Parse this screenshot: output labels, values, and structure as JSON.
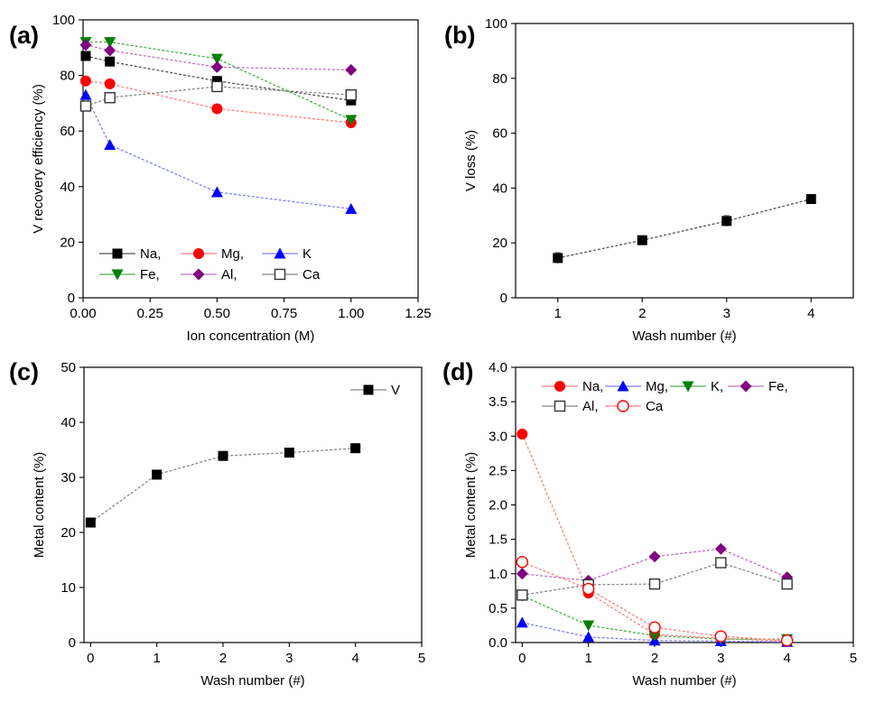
{
  "chart_data": [
    {
      "panel": "(a)",
      "type": "line",
      "xlabel": "Ion concentration (M)",
      "ylabel": "V recovery efficiency (%)",
      "xlim": [
        0,
        1.25
      ],
      "ylim": [
        0,
        100
      ],
      "xticks": [
        "0.00",
        "0.25",
        "0.50",
        "0.75",
        "1.00",
        "1.25"
      ],
      "yticks": [
        "0",
        "20",
        "40",
        "60",
        "80",
        "100"
      ],
      "legend_position": "bottom-left",
      "x": [
        0.01,
        0.1,
        0.5,
        1.0
      ],
      "series": [
        {
          "name": "Na,",
          "marker": "square",
          "color": "#000000",
          "line": "#555555",
          "values": [
            87,
            85,
            78,
            71
          ]
        },
        {
          "name": "Mg,",
          "marker": "circle",
          "color": "#ff0000",
          "line": "#ff8080",
          "values": [
            78,
            77,
            68,
            63
          ]
        },
        {
          "name": "K",
          "marker": "triangle-up",
          "color": "#0000ff",
          "line": "#7f7fff",
          "values": [
            73,
            55,
            38,
            32
          ]
        },
        {
          "name": "Fe,",
          "marker": "triangle-down",
          "color": "#008000",
          "line": "#4caf4c",
          "values": [
            92,
            92,
            86,
            64
          ]
        },
        {
          "name": "Al,",
          "marker": "diamond",
          "color": "#800080",
          "line": "#c070c0",
          "values": [
            91,
            89,
            83,
            82
          ]
        },
        {
          "name": "Ca",
          "marker": "open-square",
          "color": "#333333",
          "line": "#888888",
          "values": [
            69,
            72,
            76,
            73
          ]
        }
      ]
    },
    {
      "panel": "(b)",
      "type": "line",
      "xlabel": "Wash number (#)",
      "ylabel": "V loss (%)",
      "xlim": [
        0.5,
        4.5
      ],
      "ylim": [
        0,
        100
      ],
      "xticks": [
        "1",
        "2",
        "3",
        "4"
      ],
      "yticks": [
        "0",
        "20",
        "40",
        "60",
        "80",
        "100"
      ],
      "x": [
        1,
        2,
        3,
        4
      ],
      "series": [
        {
          "name": "",
          "marker": "square",
          "color": "#000000",
          "line": "#555555",
          "values": [
            14.5,
            21,
            28,
            36
          ],
          "errors": [
            2,
            1.5,
            2,
            1.5
          ]
        }
      ]
    },
    {
      "panel": "(c)",
      "type": "line",
      "xlabel": "Wash number (#)",
      "ylabel": "Metal content (%)",
      "xlim": [
        -0.1,
        5
      ],
      "ylim": [
        0,
        50
      ],
      "xticks": [
        "0",
        "1",
        "2",
        "3",
        "4",
        "5"
      ],
      "yticks": [
        "0",
        "10",
        "20",
        "30",
        "40",
        "50"
      ],
      "legend_position": "top-right",
      "x": [
        0,
        1,
        2,
        3,
        4
      ],
      "series": [
        {
          "name": "V",
          "marker": "square",
          "color": "#000000",
          "line": "#888888",
          "values": [
            21.8,
            30.5,
            33.9,
            34.5,
            35.3
          ]
        }
      ]
    },
    {
      "panel": "(d)",
      "type": "line",
      "xlabel": "Wash number (#)",
      "ylabel": "Metal content (%)",
      "xlim": [
        -0.1,
        5
      ],
      "ylim": [
        0,
        4.0
      ],
      "xticks": [
        "0",
        "1",
        "2",
        "3",
        "4",
        "5"
      ],
      "yticks": [
        "0.0",
        "0.5",
        "1.0",
        "1.5",
        "2.0",
        "2.5",
        "3.0",
        "3.5",
        "4.0"
      ],
      "legend_position": "top",
      "x": [
        0,
        1,
        2,
        3,
        4
      ],
      "series": [
        {
          "name": "Na,",
          "marker": "circle",
          "color": "#ff0000",
          "line": "#ff8080",
          "values": [
            3.03,
            0.72,
            0.12,
            0.06,
            0.02
          ]
        },
        {
          "name": "Mg,",
          "marker": "triangle-up",
          "color": "#0000ff",
          "line": "#7f7fff",
          "values": [
            0.29,
            0.08,
            0.03,
            0.02,
            0.01
          ]
        },
        {
          "name": "K,",
          "marker": "triangle-down",
          "color": "#008000",
          "line": "#4caf4c",
          "values": [
            0.68,
            0.25,
            0.1,
            0.05,
            0.05
          ]
        },
        {
          "name": "Fe,",
          "marker": "diamond",
          "color": "#800080",
          "line": "#c070c0",
          "values": [
            1.0,
            0.9,
            1.25,
            1.36,
            0.95
          ]
        },
        {
          "name": "Al,",
          "marker": "open-square",
          "color": "#333333",
          "line": "#888888",
          "values": [
            0.69,
            0.84,
            0.85,
            1.16,
            0.85
          ]
        },
        {
          "name": "Ca",
          "marker": "open-circle",
          "color": "#ff0000",
          "line": "#ff8080",
          "values": [
            1.17,
            0.78,
            0.22,
            0.09,
            0.03
          ]
        }
      ]
    }
  ]
}
